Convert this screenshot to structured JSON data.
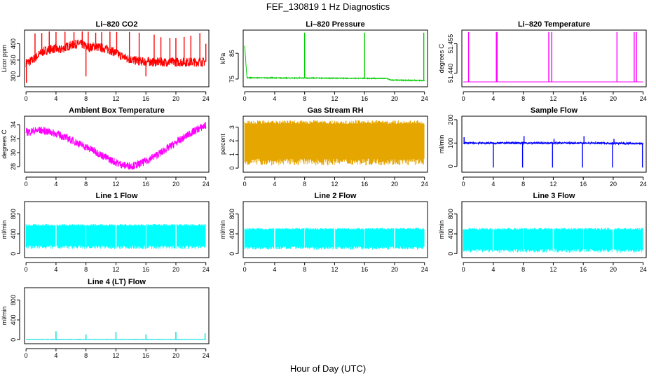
{
  "figure": {
    "title": "FEF_130819  1 Hz Diagnostics",
    "xlabel": "Hour of Day (UTC)"
  },
  "chart_data": [
    {
      "type": "line",
      "title": "Li–820 CO2",
      "ylabel": "Licor ppm",
      "color": "#ff0000",
      "x_ticks": [
        0,
        4,
        8,
        12,
        16,
        20,
        24
      ],
      "y_ticks": [
        "300",
        "350",
        "400"
      ],
      "xlim": [
        -0.2,
        24.4
      ],
      "ylim": [
        268,
        442
      ],
      "series": [
        {
          "x": [
            0,
            0.5,
            1,
            1.5,
            2,
            2.5,
            3,
            3.5,
            4,
            4.5,
            5,
            5.5,
            6,
            6.5,
            7,
            7.5,
            8,
            8.5,
            9,
            9.5,
            10,
            10.5,
            11,
            11.5,
            12,
            12.5,
            13,
            13.5,
            14,
            14.5,
            15,
            15.5,
            16,
            16.5,
            17,
            18,
            19,
            20,
            21,
            22,
            23,
            24
          ],
          "y": [
            342,
            345,
            352,
            362,
            372,
            378,
            382,
            385,
            384,
            380,
            386,
            392,
            395,
            398,
            400,
            398,
            392,
            388,
            392,
            390,
            388,
            386,
            382,
            378,
            372,
            365,
            360,
            355,
            352,
            349,
            347,
            346,
            345,
            345,
            344,
            344,
            344,
            344,
            344,
            344,
            344,
            345
          ],
          "noise": 14,
          "spikes": [
            [
              0.05,
              280
            ],
            [
              1.2,
              432
            ],
            [
              2.1,
              433
            ],
            [
              3.1,
              438
            ],
            [
              4.0,
              436
            ],
            [
              5.2,
              437
            ],
            [
              6.4,
              436
            ],
            [
              7.5,
              438
            ],
            [
              8.0,
              300
            ],
            [
              8.3,
              437
            ],
            [
              9.3,
              434
            ],
            [
              10.1,
              436
            ],
            [
              11.2,
              437
            ],
            [
              12.1,
              436
            ],
            [
              13.8,
              436
            ],
            [
              15.1,
              434
            ],
            [
              16.0,
              300
            ],
            [
              17.1,
              428
            ],
            [
              18.0,
              420
            ],
            [
              19.2,
              418
            ],
            [
              20.0,
              418
            ],
            [
              21.1,
              421
            ],
            [
              22.0,
              425
            ],
            [
              23.2,
              433
            ],
            [
              24.0,
              400
            ]
          ]
        }
      ]
    },
    {
      "type": "line",
      "title": "Li–820 Pressure",
      "ylabel": "kPa",
      "color": "#00cc00",
      "x_ticks": [
        0,
        4,
        8,
        12,
        16,
        20,
        24
      ],
      "y_ticks": [
        "75",
        "85"
      ],
      "xlim": [
        -0.2,
        24.4
      ],
      "ylim": [
        72,
        94
      ],
      "series": [
        {
          "x": [
            0,
            0.3,
            2,
            6,
            10,
            14,
            16,
            19,
            19.5,
            23,
            24
          ],
          "y": [
            88,
            75.5,
            75.5,
            75.4,
            75.4,
            75.3,
            75.3,
            75.2,
            74.6,
            74.5,
            74.4
          ],
          "noise": 0.15,
          "spikes": [
            [
              8.0,
              93
            ],
            [
              16.0,
              93
            ],
            [
              23.9,
              93
            ]
          ]
        }
      ]
    },
    {
      "type": "line",
      "title": "Li–820 Temperature",
      "ylabel": "degrees C",
      "color": "#ff00ff",
      "x_ticks": [
        0,
        4,
        8,
        12,
        16,
        20,
        24
      ],
      "y_ticks": [
        "51.440",
        "51.455"
      ],
      "xlim": [
        -0.2,
        24.4
      ],
      "ylim": [
        51.433,
        51.462
      ],
      "series": [
        {
          "x": [
            0,
            24
          ],
          "y": [
            51.4355,
            51.4355
          ],
          "noise": 0,
          "spikes": [
            [
              0.7,
              51.461
            ],
            [
              4.4,
              51.461
            ],
            [
              4.5,
              51.461
            ],
            [
              11.4,
              51.461
            ],
            [
              11.8,
              51.461
            ],
            [
              20.5,
              51.461
            ],
            [
              22.8,
              51.461
            ],
            [
              23.1,
              51.461
            ]
          ]
        }
      ]
    },
    {
      "type": "line",
      "title": "Ambient Box Temperature",
      "ylabel": "degrees C",
      "color": "#ff00ff",
      "x_ticks": [
        0,
        4,
        8,
        12,
        16,
        20,
        24
      ],
      "y_ticks": [
        "28",
        "30",
        "32",
        "34"
      ],
      "xlim": [
        -0.2,
        24.4
      ],
      "ylim": [
        27.2,
        35.2
      ],
      "series": [
        {
          "x": [
            0,
            1,
            2,
            3,
            4,
            5,
            6,
            7,
            8,
            9,
            10,
            11,
            12,
            13,
            14,
            15,
            16,
            17,
            18,
            19,
            20,
            21,
            22,
            23,
            24
          ],
          "y": [
            32.9,
            33.1,
            33.2,
            33.0,
            32.7,
            32.3,
            31.8,
            31.3,
            30.8,
            30.3,
            29.7,
            29.1,
            28.6,
            28.2,
            28.1,
            28.3,
            28.8,
            29.4,
            30.0,
            30.7,
            31.4,
            32.1,
            32.8,
            33.4,
            33.9
          ],
          "noise": 0.55,
          "spikes": []
        }
      ]
    },
    {
      "type": "line",
      "title": "Gas Stream RH",
      "ylabel": "percent",
      "color": "#e6a600",
      "x_ticks": [
        0,
        4,
        8,
        12,
        16,
        20,
        24
      ],
      "y_ticks": [
        "0",
        "1",
        "2",
        "3"
      ],
      "xlim": [
        -0.2,
        24.4
      ],
      "ylim": [
        -0.3,
        3.8
      ],
      "series": [
        {
          "x": [
            0,
            24
          ],
          "y": [
            2.0,
            2.0
          ],
          "band": [
            0.2,
            3.5
          ],
          "noise": 0,
          "spikes": []
        }
      ]
    },
    {
      "type": "line",
      "title": "Sample Flow",
      "ylabel": "ml/min",
      "color": "#0000ff",
      "x_ticks": [
        0,
        4,
        8,
        12,
        16,
        20,
        24
      ],
      "y_ticks": [
        "0",
        "100",
        "200"
      ],
      "xlim": [
        -0.2,
        24.4
      ],
      "ylim": [
        -25,
        215
      ],
      "series": [
        {
          "x": [
            0,
            4,
            8,
            12,
            16,
            20,
            24
          ],
          "y": [
            100,
            100,
            100,
            100,
            100,
            99,
            98
          ],
          "noise": 4,
          "spikes": [
            [
              0.1,
              125
            ],
            [
              4.0,
              -5
            ],
            [
              7.9,
              -5
            ],
            [
              8.1,
              130
            ],
            [
              11.9,
              -5
            ],
            [
              12.1,
              118
            ],
            [
              15.9,
              -5
            ],
            [
              16.1,
              130
            ],
            [
              19.9,
              -5
            ],
            [
              20.1,
              118
            ],
            [
              23.9,
              -5
            ]
          ]
        }
      ]
    },
    {
      "type": "line",
      "title": "Line 1 Flow",
      "ylabel": "ml/min",
      "color": "#00ffff",
      "x_ticks": [
        0,
        4,
        8,
        12,
        16,
        20,
        24
      ],
      "y_ticks": [
        "0",
        "400",
        "800"
      ],
      "xlim": [
        -0.2,
        24.4
      ],
      "ylim": [
        -80,
        1050
      ],
      "series": [
        {
          "x": [
            0,
            24
          ],
          "y": [
            350,
            350
          ],
          "band": [
            90,
            600
          ],
          "gaps": [
            4,
            8,
            12,
            16,
            20
          ],
          "noise": 0,
          "spikes": []
        }
      ]
    },
    {
      "type": "line",
      "title": "Line 2 Flow",
      "ylabel": "ml/min",
      "color": "#00ffff",
      "x_ticks": [
        0,
        4,
        8,
        12,
        16,
        20,
        24
      ],
      "y_ticks": [
        "0",
        "400",
        "800"
      ],
      "xlim": [
        -0.2,
        24.4
      ],
      "ylim": [
        -80,
        1050
      ],
      "series": [
        {
          "x": [
            0,
            24
          ],
          "y": [
            300,
            300
          ],
          "band": [
            80,
            520
          ],
          "gaps": [
            4,
            8,
            12,
            16,
            20
          ],
          "noise": 0,
          "spikes": []
        }
      ]
    },
    {
      "type": "line",
      "title": "Line 3 Flow",
      "ylabel": "ml/min",
      "color": "#00ffff",
      "x_ticks": [
        0,
        4,
        8,
        12,
        16,
        20,
        24
      ],
      "y_ticks": [
        "0",
        "400",
        "800"
      ],
      "xlim": [
        -0.2,
        24.4
      ],
      "ylim": [
        -80,
        1050
      ],
      "series": [
        {
          "x": [
            0,
            24
          ],
          "y": [
            280,
            280
          ],
          "band": [
            20,
            520
          ],
          "gaps": [
            4,
            8,
            12,
            16,
            20
          ],
          "noise": 0,
          "spikes": []
        }
      ]
    },
    {
      "type": "line",
      "title": "Line 4 (LT) Flow",
      "ylabel": "ml/min",
      "color": "#00e0e0",
      "x_ticks": [
        0,
        4,
        8,
        12,
        16,
        20,
        24
      ],
      "y_ticks": [
        "0",
        "400",
        "800"
      ],
      "xlim": [
        -0.2,
        24.4
      ],
      "ylim": [
        -80,
        1050
      ],
      "series": [
        {
          "x": [
            0,
            24
          ],
          "y": [
            8,
            8
          ],
          "noise": 3,
          "spikes": [
            [
              4.0,
              170
            ],
            [
              8.0,
              110
            ],
            [
              12.0,
              160
            ],
            [
              16.0,
              110
            ],
            [
              20.0,
              160
            ],
            [
              23.9,
              130
            ]
          ]
        }
      ]
    }
  ]
}
